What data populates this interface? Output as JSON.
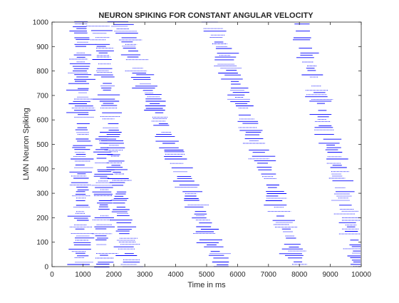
{
  "chart_data": {
    "type": "scatter",
    "title": "NEURON SPIKING FOR CONSTANT ANGULAR VELOCITY",
    "xlabel": "Time in ms",
    "ylabel": "LMN Neuron Spiking",
    "xlim": [
      0,
      10000
    ],
    "ylim": [
      0,
      1000
    ],
    "x_ticks": [
      "0",
      "1000",
      "2000",
      "3000",
      "4000",
      "5000",
      "6000",
      "7000",
      "8000",
      "9000",
      "10000"
    ],
    "y_ticks": [
      "0",
      "100",
      "200",
      "300",
      "400",
      "500",
      "600",
      "700",
      "800",
      "900",
      "1000"
    ],
    "grid": false,
    "legend": "none",
    "marker_color": "#0000ff",
    "series": [
      {
        "points_description": "raster of spike events (time ms, neuron index)",
        "bursts": [
          {
            "neuron_start": 0,
            "neuron_end": 1000,
            "time_start": 500,
            "time_end": 1400
          },
          {
            "neuron_start": 0,
            "neuron_end": 550,
            "time_start": 1300,
            "time_end": 2000
          },
          {
            "neuron_start": 1000,
            "neuron_end": 0,
            "time_start": 1500,
            "time_end": 2500
          },
          {
            "neuron_start": 1000,
            "neuron_end": 0,
            "time_start": 2200,
            "time_end": 5500
          },
          {
            "neuron_start": 1000,
            "neuron_end": 0,
            "time_start": 5200,
            "time_end": 8000
          },
          {
            "neuron_start": 1000,
            "neuron_end": 0,
            "time_start": 8000,
            "time_end": 10000
          }
        ]
      }
    ]
  }
}
